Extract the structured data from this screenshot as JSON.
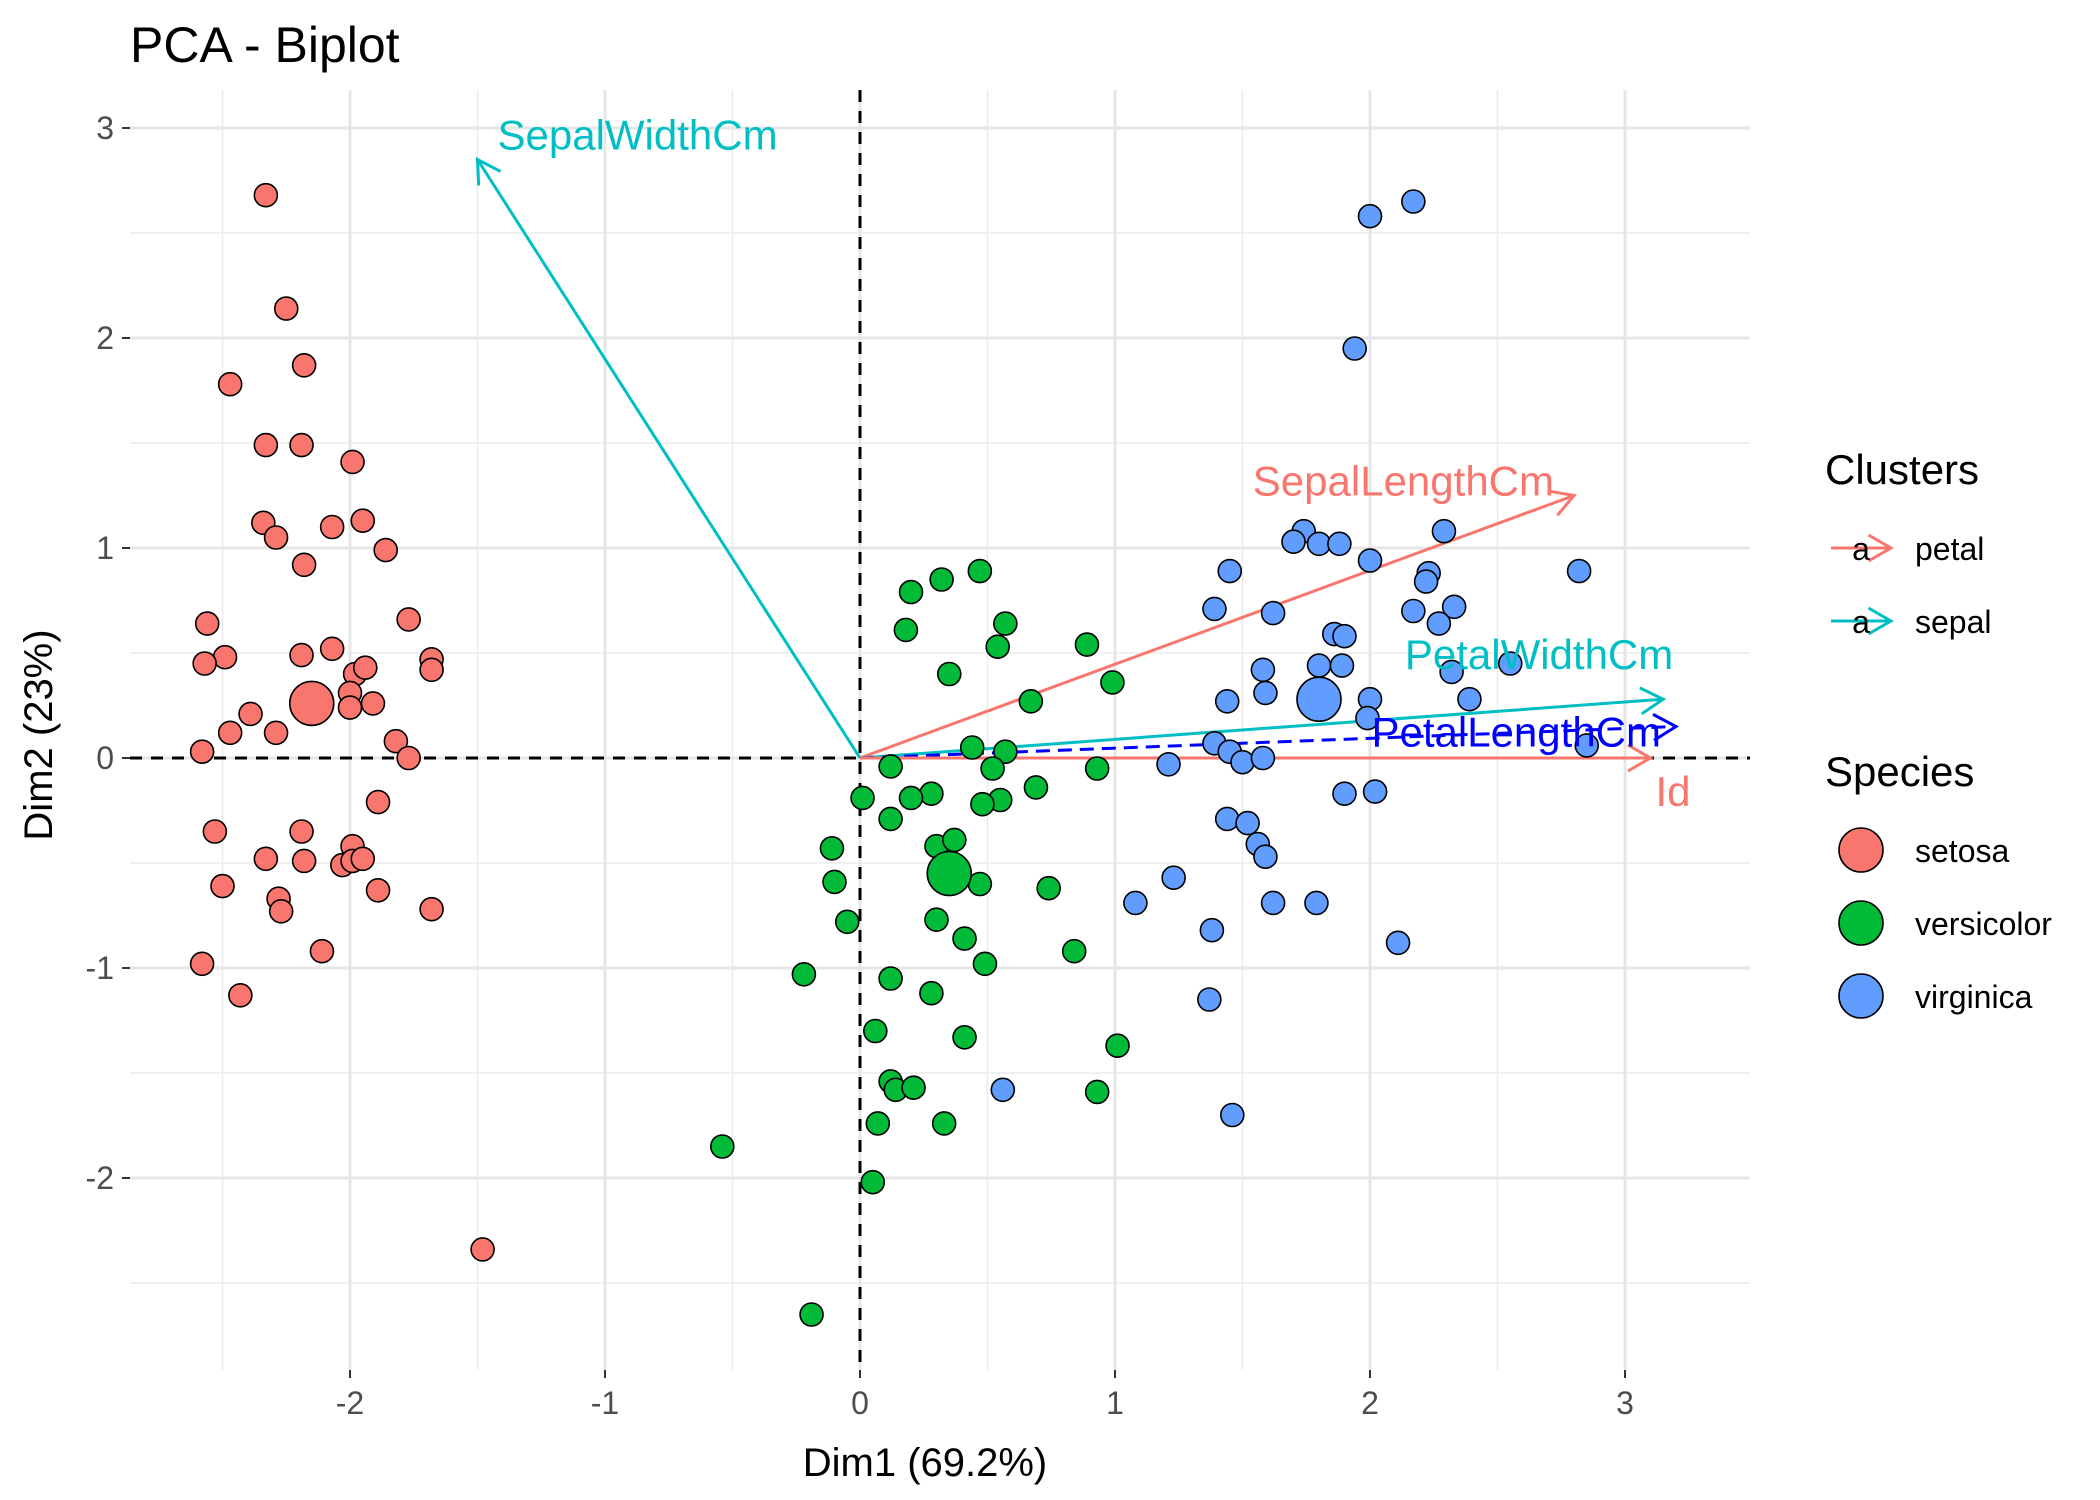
{
  "chart_data": {
    "type": "scatter",
    "title": "PCA - Biplot",
    "xlabel": "Dim1 (69.2%)",
    "ylabel": "Dim2 (23%)",
    "xlim": [
      -2.85,
      3.5
    ],
    "ylim": [
      -2.9,
      3.15
    ],
    "xticks": [
      -2,
      -1,
      0,
      1,
      2,
      3
    ],
    "yticks": [
      -2,
      -1,
      0,
      1,
      2,
      3
    ],
    "grid": true,
    "reference_lines": {
      "x": 0,
      "y": 0,
      "style": "dashed"
    },
    "colors": {
      "setosa": "#F8766D",
      "versicolor": "#00BA38",
      "virginica": "#619CFF",
      "petal": "#F8766D",
      "sepal": "#00BFC4",
      "highlight": "#0000FF"
    },
    "legends": [
      {
        "title": "Clusters",
        "type": "arrow",
        "glyph": "a",
        "entries": [
          {
            "label": "petal",
            "color": "#F8766D"
          },
          {
            "label": "sepal",
            "color": "#00BFC4"
          }
        ]
      },
      {
        "title": "Species",
        "type": "point",
        "entries": [
          {
            "label": "setosa",
            "color": "#F8766D"
          },
          {
            "label": "versicolor",
            "color": "#00BA38"
          },
          {
            "label": "virginica",
            "color": "#619CFF"
          }
        ]
      }
    ],
    "legend_position": "right",
    "vectors": [
      {
        "label": "SepalWidthCm",
        "x": -1.5,
        "y": 2.85,
        "color": "#00BFC4",
        "dashed": false
      },
      {
        "label": "SepalLengthCm",
        "x": 2.8,
        "y": 1.25,
        "color": "#F8766D",
        "dashed": false
      },
      {
        "label": "PetalWidthCm",
        "x": 3.15,
        "y": 0.28,
        "color": "#00BFC4",
        "dashed": false
      },
      {
        "label": "PetalLengthCm",
        "x": 3.2,
        "y": 0.15,
        "color": "#0000FF",
        "dashed": true
      },
      {
        "label": "Id",
        "x": 3.1,
        "y": 0.0,
        "color": "#F8766D",
        "dashed": false
      }
    ],
    "centroids": [
      {
        "species": "setosa",
        "x": -2.15,
        "y": 0.26
      },
      {
        "species": "versicolor",
        "x": 0.35,
        "y": -0.55
      },
      {
        "species": "virginica",
        "x": 1.8,
        "y": 0.28
      }
    ],
    "series": [
      {
        "name": "setosa",
        "points": [
          [
            -2.33,
            2.68
          ],
          [
            -2.25,
            2.14
          ],
          [
            -2.18,
            1.87
          ],
          [
            -2.47,
            1.78
          ],
          [
            -2.33,
            1.49
          ],
          [
            -2.19,
            1.49
          ],
          [
            -1.99,
            1.41
          ],
          [
            -2.34,
            1.12
          ],
          [
            -2.29,
            1.05
          ],
          [
            -2.07,
            1.1
          ],
          [
            -1.95,
            1.13
          ],
          [
            -2.18,
            0.92
          ],
          [
            -1.86,
            0.99
          ],
          [
            -2.56,
            0.64
          ],
          [
            -1.77,
            0.66
          ],
          [
            -2.49,
            0.48
          ],
          [
            -2.57,
            0.45
          ],
          [
            -2.19,
            0.49
          ],
          [
            -2.07,
            0.52
          ],
          [
            -1.98,
            0.4
          ],
          [
            -1.94,
            0.43
          ],
          [
            -1.68,
            0.47
          ],
          [
            -1.68,
            0.42
          ],
          [
            -2.39,
            0.21
          ],
          [
            -2.47,
            0.12
          ],
          [
            -2.29,
            0.12
          ],
          [
            -2.0,
            0.31
          ],
          [
            -2.0,
            0.24
          ],
          [
            -1.91,
            0.26
          ],
          [
            -1.82,
            0.08
          ],
          [
            -1.77,
            0.0
          ],
          [
            -2.58,
            0.03
          ],
          [
            -2.53,
            -0.35
          ],
          [
            -2.19,
            -0.35
          ],
          [
            -1.89,
            -0.21
          ],
          [
            -2.5,
            -0.61
          ],
          [
            -2.33,
            -0.48
          ],
          [
            -2.18,
            -0.49
          ],
          [
            -1.99,
            -0.42
          ],
          [
            -2.03,
            -0.51
          ],
          [
            -1.99,
            -0.49
          ],
          [
            -1.95,
            -0.48
          ],
          [
            -2.28,
            -0.67
          ],
          [
            -2.27,
            -0.73
          ],
          [
            -1.89,
            -0.63
          ],
          [
            -1.68,
            -0.72
          ],
          [
            -2.11,
            -0.92
          ],
          [
            -2.58,
            -0.98
          ],
          [
            -2.43,
            -1.13
          ],
          [
            -1.48,
            -2.34
          ]
        ]
      },
      {
        "name": "versicolor",
        "points": [
          [
            0.47,
            0.89
          ],
          [
            0.32,
            0.85
          ],
          [
            0.2,
            0.79
          ],
          [
            0.57,
            0.64
          ],
          [
            0.18,
            0.61
          ],
          [
            0.89,
            0.54
          ],
          [
            0.54,
            0.53
          ],
          [
            0.35,
            0.4
          ],
          [
            0.99,
            0.36
          ],
          [
            0.67,
            0.27
          ],
          [
            0.44,
            0.05
          ],
          [
            0.57,
            0.03
          ],
          [
            0.12,
            -0.04
          ],
          [
            0.52,
            -0.05
          ],
          [
            0.93,
            -0.05
          ],
          [
            0.69,
            -0.14
          ],
          [
            0.28,
            -0.17
          ],
          [
            0.55,
            -0.2
          ],
          [
            0.01,
            -0.19
          ],
          [
            0.2,
            -0.19
          ],
          [
            0.48,
            -0.22
          ],
          [
            0.12,
            -0.29
          ],
          [
            0.3,
            -0.42
          ],
          [
            0.37,
            -0.39
          ],
          [
            -0.11,
            -0.43
          ],
          [
            -0.1,
            -0.59
          ],
          [
            0.47,
            -0.6
          ],
          [
            0.74,
            -0.62
          ],
          [
            0.3,
            -0.77
          ],
          [
            -0.05,
            -0.78
          ],
          [
            0.41,
            -0.86
          ],
          [
            0.84,
            -0.92
          ],
          [
            0.49,
            -0.98
          ],
          [
            0.12,
            -1.05
          ],
          [
            -0.22,
            -1.03
          ],
          [
            0.28,
            -1.12
          ],
          [
            0.06,
            -1.3
          ],
          [
            0.41,
            -1.33
          ],
          [
            1.01,
            -1.37
          ],
          [
            0.12,
            -1.54
          ],
          [
            0.14,
            -1.58
          ],
          [
            0.21,
            -1.57
          ],
          [
            0.93,
            -1.59
          ],
          [
            0.07,
            -1.74
          ],
          [
            0.33,
            -1.74
          ],
          [
            -0.54,
            -1.85
          ],
          [
            0.05,
            -2.02
          ],
          [
            -0.19,
            -2.65
          ]
        ]
      },
      {
        "name": "virginica",
        "points": [
          [
            2.17,
            2.65
          ],
          [
            2.0,
            2.58
          ],
          [
            1.94,
            1.95
          ],
          [
            1.74,
            1.08
          ],
          [
            2.29,
            1.08
          ],
          [
            1.7,
            1.03
          ],
          [
            1.8,
            1.02
          ],
          [
            1.88,
            1.02
          ],
          [
            2.0,
            0.94
          ],
          [
            1.45,
            0.89
          ],
          [
            2.82,
            0.89
          ],
          [
            2.23,
            0.88
          ],
          [
            2.22,
            0.84
          ],
          [
            2.33,
            0.72
          ],
          [
            1.39,
            0.71
          ],
          [
            2.17,
            0.7
          ],
          [
            1.62,
            0.69
          ],
          [
            2.27,
            0.64
          ],
          [
            1.86,
            0.59
          ],
          [
            1.9,
            0.58
          ],
          [
            2.55,
            0.45
          ],
          [
            1.8,
            0.44
          ],
          [
            1.89,
            0.44
          ],
          [
            1.58,
            0.42
          ],
          [
            2.32,
            0.41
          ],
          [
            1.59,
            0.31
          ],
          [
            2.39,
            0.28
          ],
          [
            2.0,
            0.28
          ],
          [
            1.44,
            0.27
          ],
          [
            1.99,
            0.19
          ],
          [
            1.39,
            0.07
          ],
          [
            2.85,
            0.06
          ],
          [
            1.21,
            -0.03
          ],
          [
            1.45,
            0.03
          ],
          [
            1.5,
            -0.02
          ],
          [
            1.58,
            0.0
          ],
          [
            1.9,
            -0.17
          ],
          [
            2.02,
            -0.16
          ],
          [
            1.44,
            -0.29
          ],
          [
            1.52,
            -0.31
          ],
          [
            1.56,
            -0.41
          ],
          [
            1.59,
            -0.47
          ],
          [
            1.23,
            -0.57
          ],
          [
            1.08,
            -0.69
          ],
          [
            1.62,
            -0.69
          ],
          [
            1.79,
            -0.69
          ],
          [
            1.38,
            -0.82
          ],
          [
            2.11,
            -0.88
          ],
          [
            1.37,
            -1.15
          ],
          [
            0.56,
            -1.58
          ],
          [
            1.46,
            -1.7
          ]
        ]
      }
    ]
  }
}
